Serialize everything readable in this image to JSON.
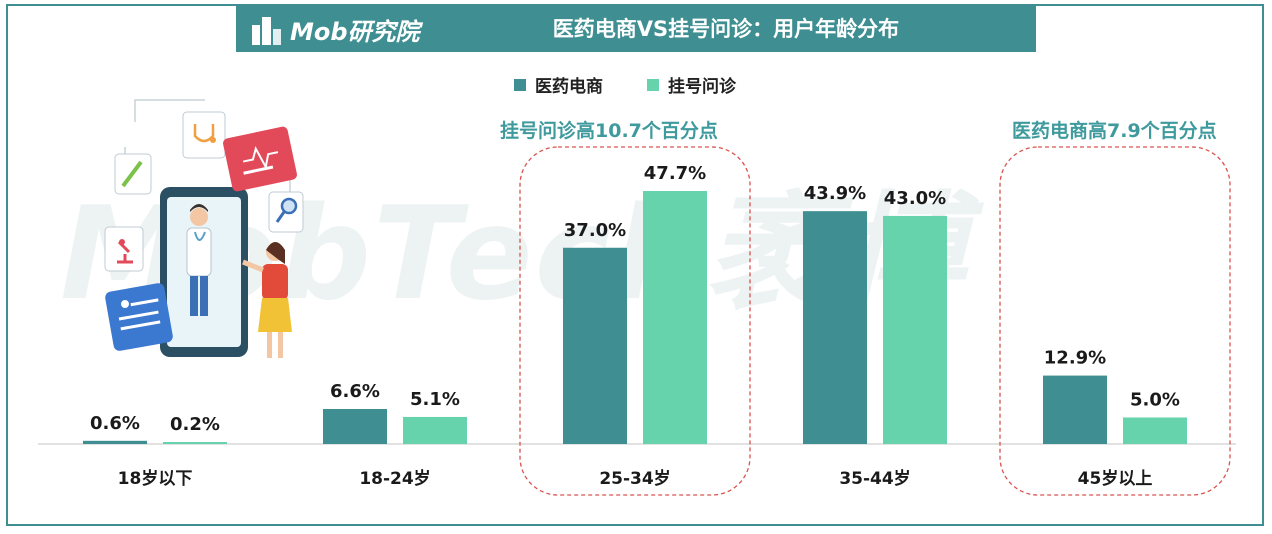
{
  "header": {
    "logo_text": "Mob研究院",
    "title": "医药电商VS挂号问诊：用户年龄分布"
  },
  "watermark": "MobTech袤博",
  "legend": [
    {
      "name": "医药电商",
      "color": "#3f8f92"
    },
    {
      "name": "挂号问诊",
      "color": "#66d3ad"
    }
  ],
  "callouts": {
    "left": "挂号问诊高10.7个百分点",
    "right": "医药电商高7.9个百分点"
  },
  "chart_data": {
    "type": "bar",
    "categories": [
      "18岁以下",
      "18-24岁",
      "25-34岁",
      "35-44岁",
      "45岁以上"
    ],
    "series": [
      {
        "name": "医药电商",
        "color": "#3f8f92",
        "values": [
          0.6,
          6.6,
          37.0,
          43.9,
          12.9
        ],
        "labels": [
          "0.6%",
          "6.6%",
          "37.0%",
          "43.9%",
          "12.9%"
        ]
      },
      {
        "name": "挂号问诊",
        "color": "#66d3ad",
        "values": [
          0.2,
          5.1,
          47.7,
          43.0,
          5.0
        ],
        "labels": [
          "0.2%",
          "5.1%",
          "47.7%",
          "43.0%",
          "5.0%"
        ]
      }
    ],
    "ylim": [
      0,
      50
    ],
    "grid": false,
    "legend_position": "top"
  },
  "illustration": {
    "icons": [
      "stethoscope-icon",
      "pen-icon",
      "heart-pulse-icon",
      "magnifier-icon",
      "microscope-icon",
      "patient-card-icon"
    ]
  }
}
